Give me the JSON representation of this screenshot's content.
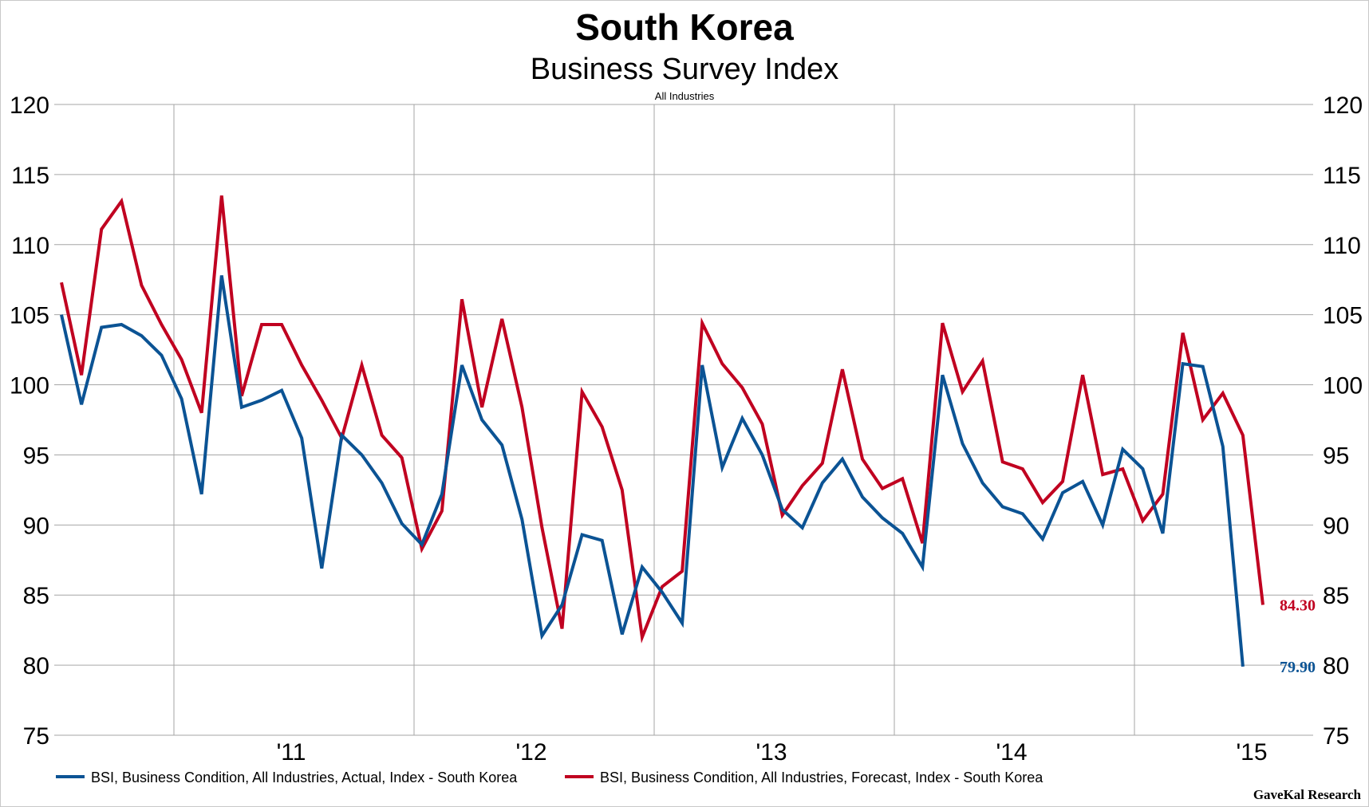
{
  "chart_data": {
    "type": "line",
    "title": "South Korea",
    "subtitle": "Business Survey Index",
    "note": "All Industries",
    "x_tick_labels": [
      "'11",
      "'12",
      "'13",
      "'14",
      "'15"
    ],
    "ylim": [
      75,
      120
    ],
    "y_ticks": [
      75,
      80,
      85,
      90,
      95,
      100,
      105,
      110,
      115,
      120
    ],
    "grid": true,
    "legend_position": "bottom-left",
    "source": "GaveKal Research",
    "series": [
      {
        "name": "BSI, Business Condition, All Industries, Actual, Index - South Korea",
        "color": "#0b5394",
        "end_label": "79.90",
        "values": [
          105.0,
          98.6,
          104.1,
          104.3,
          103.5,
          102.1,
          99.0,
          92.2,
          107.8,
          98.4,
          98.9,
          99.6,
          96.2,
          86.9,
          96.4,
          95.0,
          93.0,
          90.1,
          88.6,
          92.2,
          101.4,
          97.5,
          95.7,
          90.4,
          82.1,
          84.3,
          89.3,
          88.9,
          82.2,
          87.0,
          85.2,
          83.0,
          101.4,
          94.1,
          97.6,
          95.0,
          91.1,
          89.8,
          93.0,
          94.7,
          92.0,
          90.5,
          89.4,
          87.0,
          100.7,
          95.8,
          93.0,
          91.3,
          90.8,
          89.0,
          92.3,
          93.1,
          90.0,
          95.4,
          94.0,
          89.4,
          101.5,
          101.3,
          95.6,
          79.9
        ]
      },
      {
        "name": "BSI, Business Condition, All Industries, Forecast, Index - South Korea",
        "color": "#c00020",
        "end_label": "84.30",
        "values": [
          107.3,
          100.7,
          111.1,
          113.1,
          107.1,
          104.3,
          101.8,
          98.0,
          113.5,
          99.2,
          104.3,
          104.3,
          101.4,
          98.9,
          96.2,
          101.4,
          96.4,
          94.8,
          88.3,
          91.0,
          106.1,
          98.4,
          104.7,
          98.4,
          89.8,
          82.6,
          99.5,
          97.0,
          92.5,
          82.0,
          85.6,
          86.7,
          104.4,
          101.5,
          99.8,
          97.2,
          90.7,
          92.8,
          94.4,
          101.1,
          94.7,
          92.6,
          93.3,
          88.7,
          104.4,
          99.5,
          101.7,
          94.5,
          94.0,
          91.6,
          93.1,
          100.7,
          93.6,
          94.0,
          90.3,
          92.2,
          103.7,
          97.5,
          99.4,
          96.4,
          84.3
        ]
      }
    ]
  }
}
